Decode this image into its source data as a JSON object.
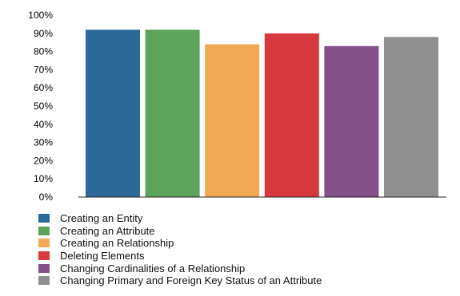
{
  "chart_data": {
    "type": "bar",
    "title": "",
    "xlabel": "",
    "ylabel": "",
    "ylim": [
      0,
      1
    ],
    "yticks": [
      "0%",
      "10%",
      "20%",
      "30%",
      "40%",
      "50%",
      "60%",
      "70%",
      "80%",
      "90%",
      "100%"
    ],
    "grid": false,
    "legend_position": "bottom-left",
    "series": [
      {
        "name": "Creating an Entity",
        "value": 0.92,
        "color": "#2d6a9a"
      },
      {
        "name": "Creating an Attribute",
        "value": 0.92,
        "color": "#5ea35c"
      },
      {
        "name": "Creating an Relationship",
        "value": 0.84,
        "color": "#f2a954"
      },
      {
        "name": "Deleting Elements",
        "value": 0.9,
        "color": "#d8393f"
      },
      {
        "name": "Changing Cardinalities of a Relationship",
        "value": 0.83,
        "color": "#83508a"
      },
      {
        "name": "Changing Primary and Foreign Key Status of an Attribute",
        "value": 0.88,
        "color": "#8f908f"
      }
    ]
  }
}
